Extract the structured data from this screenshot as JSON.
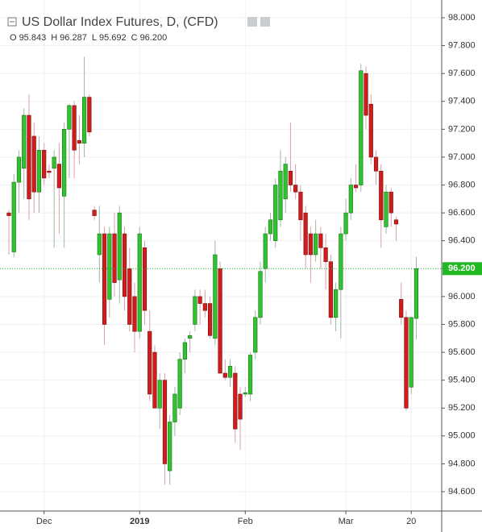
{
  "chart_data": {
    "type": "candlestick",
    "title": "US Dollar Index Futures, D, (CFD)",
    "ohlc_header": [
      {
        "key": "O",
        "value": "95.843"
      },
      {
        "key": "H",
        "value": "96.287"
      },
      {
        "key": "L",
        "value": "95.692"
      },
      {
        "key": "C",
        "value": "96.200"
      }
    ],
    "categories": [
      null,
      null,
      null,
      null,
      null,
      null,
      null,
      "Dec",
      null,
      null,
      null,
      null,
      null,
      null,
      null,
      null,
      null,
      null,
      null,
      null,
      null,
      null,
      null,
      null,
      null,
      null,
      "2019",
      null,
      null,
      null,
      null,
      null,
      null,
      null,
      null,
      null,
      null,
      null,
      null,
      null,
      null,
      null,
      null,
      null,
      null,
      null,
      null,
      "Feb",
      null,
      null,
      null,
      null,
      null,
      null,
      null,
      null,
      null,
      null,
      null,
      null,
      null,
      null,
      null,
      null,
      null,
      null,
      null,
      "Mar",
      null,
      null,
      null,
      null,
      null,
      null,
      null,
      null,
      null,
      null,
      null,
      null,
      "20",
      null
    ],
    "open": [
      96.6,
      96.32,
      96.82,
      96.92,
      97.3,
      97.15,
      96.75,
      97.05,
      96.9,
      96.92,
      96.95,
      96.72,
      97.2,
      97.37,
      97.12,
      97.1,
      97.43,
      96.62,
      96.3,
      96.45,
      95.98,
      96.45,
      96.12,
      96.45,
      96.2,
      96.0,
      95.75,
      96.35,
      95.75,
      95.6,
      95.2,
      95.4,
      94.75,
      95.1,
      95.2,
      95.55,
      95.7,
      95.8,
      96.0,
      95.95,
      95.95,
      95.7,
      96.2,
      95.45,
      95.42,
      95.45,
      95.3,
      95.3,
      95.3,
      95.6,
      95.85,
      96.2,
      96.45,
      96.4,
      96.55,
      96.7,
      96.9,
      96.8,
      96.75,
      96.6,
      96.45,
      96.3,
      96.45,
      96.35,
      96.25,
      95.85,
      96.05,
      96.45,
      96.6,
      96.8,
      96.8,
      97.6,
      97.38,
      97.0,
      96.9,
      96.5,
      96.75,
      96.55,
      95.98,
      95.85,
      95.35,
      95.843
    ],
    "high": [
      96.62,
      96.88,
      97.05,
      97.35,
      97.45,
      97.25,
      97.15,
      97.1,
      96.95,
      97.05,
      97.1,
      97.25,
      97.38,
      97.4,
      97.3,
      97.72,
      97.45,
      96.65,
      96.65,
      96.5,
      96.5,
      96.6,
      96.65,
      96.5,
      96.35,
      96.1,
      96.5,
      96.4,
      95.9,
      95.65,
      95.45,
      95.45,
      95.15,
      95.35,
      95.6,
      95.7,
      95.75,
      96.05,
      96.05,
      96.05,
      96.0,
      96.4,
      96.25,
      95.55,
      95.55,
      95.5,
      95.35,
      95.35,
      95.6,
      95.9,
      96.25,
      96.5,
      96.6,
      96.85,
      97.05,
      97.0,
      97.25,
      96.95,
      96.8,
      96.65,
      96.5,
      96.55,
      96.5,
      96.45,
      96.3,
      96.1,
      96.5,
      96.7,
      96.85,
      96.95,
      97.67,
      97.65,
      97.45,
      97.05,
      96.95,
      96.8,
      96.78,
      96.57,
      96.1,
      95.9,
      95.85,
      96.287
    ],
    "low": [
      96.3,
      96.28,
      96.6,
      96.7,
      96.55,
      96.6,
      96.6,
      96.8,
      96.85,
      96.35,
      96.45,
      96.35,
      96.85,
      96.85,
      96.95,
      97.0,
      97.15,
      96.55,
      96.1,
      95.65,
      95.85,
      96.0,
      95.95,
      95.9,
      95.75,
      95.6,
      95.7,
      95.8,
      95.25,
      95.2,
      95.05,
      94.65,
      94.65,
      95.0,
      95.15,
      95.45,
      95.6,
      95.75,
      95.8,
      95.85,
      95.7,
      95.65,
      95.45,
      95.4,
      95.35,
      94.95,
      94.9,
      95.28,
      95.25,
      95.55,
      95.8,
      96.1,
      96.4,
      96.35,
      96.5,
      96.6,
      96.75,
      96.7,
      96.4,
      96.2,
      96.1,
      96.25,
      96.2,
      96.05,
      95.8,
      95.75,
      95.7,
      96.4,
      96.55,
      96.75,
      96.75,
      97.2,
      96.95,
      96.8,
      96.35,
      96.45,
      96.5,
      96.4,
      95.8,
      95.18,
      95.3,
      95.692
    ],
    "close": [
      96.58,
      96.82,
      97.0,
      97.3,
      96.7,
      96.75,
      97.05,
      96.85,
      96.89,
      97.0,
      96.78,
      97.2,
      97.37,
      97.05,
      97.1,
      97.43,
      97.18,
      96.58,
      96.45,
      95.8,
      96.45,
      96.1,
      96.6,
      96.0,
      95.8,
      95.75,
      96.45,
      95.9,
      95.3,
      95.2,
      95.4,
      94.8,
      95.1,
      95.3,
      95.55,
      95.67,
      95.72,
      96.0,
      95.95,
      95.9,
      95.72,
      96.3,
      95.45,
      95.42,
      95.5,
      95.05,
      95.12,
      95.31,
      95.58,
      95.85,
      96.18,
      96.45,
      96.55,
      96.8,
      96.9,
      96.95,
      96.8,
      96.75,
      96.55,
      96.3,
      96.3,
      96.45,
      96.35,
      96.25,
      95.85,
      96.05,
      96.45,
      96.6,
      96.8,
      96.78,
      97.62,
      97.3,
      97.0,
      96.9,
      96.55,
      96.75,
      96.6,
      96.52,
      95.85,
      95.2,
      95.85,
      96.2
    ],
    "up_color": "#2ec42e",
    "down_color": "#d01c1c",
    "last_price": {
      "value": 96.2,
      "label": "96.200",
      "color": "#22b822"
    },
    "ylim": [
      94.48,
      98.1
    ],
    "yticks": [
      {
        "value": 94.6,
        "label": "94.600"
      },
      {
        "value": 94.8,
        "label": "94.800"
      },
      {
        "value": 95.0,
        "label": "95.000"
      },
      {
        "value": 95.2,
        "label": "95.200"
      },
      {
        "value": 95.4,
        "label": "95.400"
      },
      {
        "value": 95.6,
        "label": "95.600"
      },
      {
        "value": 95.8,
        "label": "95.800"
      },
      {
        "value": 96.0,
        "label": "96.000"
      },
      {
        "value": 96.2,
        "label": "96.200"
      },
      {
        "value": 96.4,
        "label": "96.400"
      },
      {
        "value": 96.6,
        "label": "96.600"
      },
      {
        "value": 96.8,
        "label": "96.800"
      },
      {
        "value": 97.0,
        "label": "97.000"
      },
      {
        "value": 97.2,
        "label": "97.200"
      },
      {
        "value": 97.4,
        "label": "97.400"
      },
      {
        "value": 97.6,
        "label": "97.600"
      },
      {
        "value": 97.8,
        "label": "97.800"
      },
      {
        "value": 98.0,
        "label": "98.000"
      }
    ],
    "grid": true
  }
}
